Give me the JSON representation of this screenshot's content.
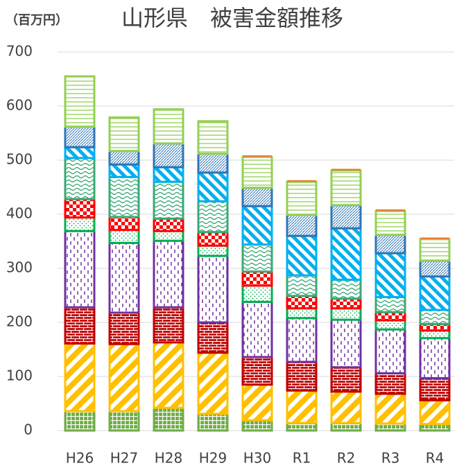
{
  "chart_data": {
    "type": "stacked-bar",
    "unit_label": "（百万円）",
    "title": "山形県　被害金額推移",
    "categories": [
      "H26",
      "H27",
      "H28",
      "H29",
      "H30",
      "R1",
      "R2",
      "R3",
      "R4"
    ],
    "ylim": [
      0,
      700
    ],
    "yticks": [
      0,
      100,
      200,
      300,
      400,
      500,
      600,
      700
    ],
    "grid": true,
    "series": [
      {
        "color": "#70ad47",
        "pattern": "grid",
        "values": [
          36,
          36,
          42,
          31,
          19,
          14,
          14,
          13,
          12
        ]
      },
      {
        "color": "#ffc000",
        "pattern": "diagonal-down",
        "values": [
          125,
          124,
          121,
          113,
          66,
          60,
          58,
          55,
          44
        ]
      },
      {
        "color": "#c00000",
        "pattern": "brick",
        "values": [
          67,
          58,
          65,
          56,
          51,
          53,
          45,
          38,
          41
        ]
      },
      {
        "color": "#7030a0",
        "pattern": "dashes",
        "values": [
          141,
          129,
          123,
          123,
          102,
          81,
          88,
          81,
          74
        ]
      },
      {
        "color": "#00b050",
        "pattern": "dots",
        "values": [
          25,
          24,
          18,
          19,
          30,
          18,
          21,
          17,
          14
        ]
      },
      {
        "color": "#ff0000",
        "pattern": "checker",
        "values": [
          34,
          24,
          23,
          25,
          26,
          23,
          18,
          15,
          12
        ]
      },
      {
        "color": "#3aa876",
        "pattern": "wave",
        "values": [
          76,
          74,
          68,
          57,
          50,
          38,
          35,
          28,
          26
        ]
      },
      {
        "color": "#00b0f0",
        "pattern": "diagonal-up",
        "values": [
          20,
          23,
          27,
          53,
          71,
          73,
          95,
          81,
          62
        ]
      },
      {
        "color": "#2e75b6",
        "pattern": "hatch",
        "values": [
          38,
          25,
          44,
          35,
          34,
          39,
          43,
          34,
          29
        ]
      },
      {
        "color": "#92d050",
        "pattern": "hlines",
        "values": [
          93,
          62,
          63,
          60,
          57,
          61,
          64,
          44,
          40
        ]
      },
      {
        "color": "#ed7d31",
        "pattern": "solid",
        "values": [
          0,
          0,
          0,
          0,
          3,
          3,
          3,
          3,
          3
        ]
      }
    ]
  }
}
